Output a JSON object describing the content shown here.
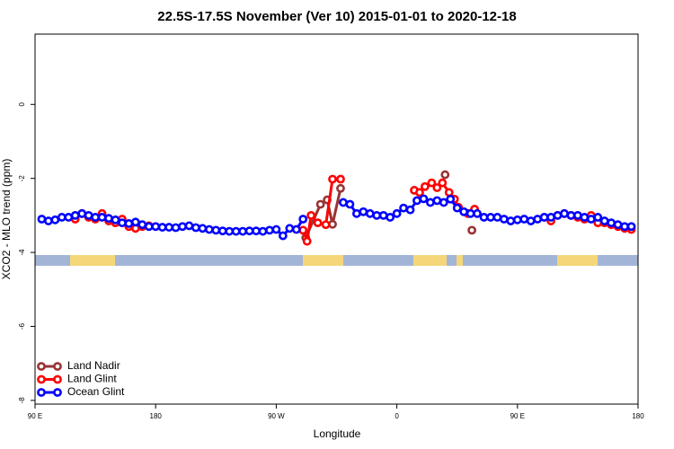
{
  "chart_data": {
    "type": "line",
    "title": "22.5S-17.5S November (Ver 10)   2015-01-01 to 2020-12-18",
    "xlabel": "Longitude",
    "ylabel": "XCO2 - MLO trend (ppm)",
    "xlim": [
      90,
      540
    ],
    "xticks": [
      {
        "value": 90,
        "label": "90 E"
      },
      {
        "value": 180,
        "label": "180"
      },
      {
        "value": 270,
        "label": "90 W"
      },
      {
        "value": 360,
        "label": "0"
      },
      {
        "value": 450,
        "label": "90 E"
      },
      {
        "value": 540,
        "label": "180"
      }
    ],
    "ylim": [
      -8.1,
      1.9
    ],
    "yticks": [
      0,
      -2,
      -4,
      -6,
      -8
    ],
    "legend": "lower left",
    "series": [
      {
        "name": "Land Nadir",
        "color": "#993333",
        "x": [
          292,
          303,
          308,
          312,
          318,
          355,
          396,
          406,
          416
        ],
        "values": [
          -3.6,
          -2.7,
          -2.58,
          -3.24,
          -2.27,
          null,
          -1.9,
          null,
          -3.4
        ]
      },
      {
        "name": "Land Glint",
        "color": "#ff0000",
        "x": [
          120,
          125,
          130,
          135,
          140,
          145,
          150,
          155,
          160,
          165,
          170,
          175,
          230,
          290,
          293,
          296,
          301,
          307,
          312,
          318,
          345,
          373,
          377,
          381,
          386,
          390,
          394,
          399,
          403,
          406,
          413,
          418,
          445,
          470,
          475,
          480,
          485,
          490,
          495,
          500,
          505,
          510,
          515,
          520,
          525,
          530,
          535
        ],
        "values": [
          -3.1,
          -2.95,
          -3.05,
          -3.1,
          -2.95,
          -3.15,
          -3.2,
          -3.1,
          -3.3,
          -3.35,
          -3.3,
          -3.28,
          null,
          -3.4,
          -3.7,
          -3.0,
          -3.2,
          -3.25,
          -2.02,
          -2.02,
          null,
          -2.32,
          -2.38,
          -2.22,
          -2.12,
          -2.25,
          -2.12,
          -2.38,
          -2.56,
          -2.78,
          -2.95,
          -2.83,
          null,
          -3.05,
          -3.15,
          -3.0,
          -2.95,
          -3.0,
          -3.05,
          -3.1,
          -3.0,
          -3.2,
          -3.2,
          -3.25,
          -3.3,
          -3.35,
          -3.38
        ]
      },
      {
        "name": "Ocean Glint",
        "color": "#0000ff",
        "x": [
          95,
          100,
          105,
          110,
          115,
          120,
          125,
          130,
          135,
          140,
          145,
          150,
          155,
          160,
          165,
          170,
          175,
          180,
          185,
          190,
          195,
          200,
          205,
          210,
          215,
          220,
          225,
          230,
          235,
          240,
          245,
          250,
          255,
          260,
          265,
          270,
          275,
          280,
          285,
          290,
          305,
          320,
          325,
          330,
          335,
          340,
          345,
          350,
          355,
          360,
          365,
          370,
          375,
          380,
          385,
          390,
          395,
          400,
          405,
          410,
          415,
          420,
          425,
          430,
          435,
          440,
          445,
          450,
          455,
          460,
          465,
          470,
          475,
          480,
          485,
          490,
          495,
          500,
          505,
          510,
          515,
          520,
          525,
          530,
          535
        ],
        "values": [
          -3.1,
          -3.15,
          -3.12,
          -3.05,
          -3.05,
          -3.0,
          -2.95,
          -3.0,
          -3.05,
          -3.05,
          -3.08,
          -3.12,
          -3.2,
          -3.22,
          -3.18,
          -3.25,
          -3.3,
          -3.3,
          -3.32,
          -3.32,
          -3.33,
          -3.3,
          -3.28,
          -3.33,
          -3.35,
          -3.38,
          -3.4,
          -3.42,
          -3.43,
          -3.43,
          -3.43,
          -3.42,
          -3.42,
          -3.43,
          -3.4,
          -3.38,
          -3.55,
          -3.35,
          -3.38,
          -3.1,
          null,
          -2.65,
          -2.7,
          -2.95,
          -2.9,
          -2.95,
          -3.0,
          -3.0,
          -3.05,
          -2.95,
          -2.8,
          -2.85,
          -2.6,
          -2.55,
          -2.65,
          -2.6,
          -2.65,
          -2.56,
          -2.8,
          -2.9,
          -2.95,
          -2.95,
          -3.05,
          -3.05,
          -3.05,
          -3.1,
          -3.15,
          -3.12,
          -3.1,
          -3.15,
          -3.1,
          -3.05,
          -3.05,
          -3.0,
          -2.95,
          -3.0,
          -3.0,
          -3.05,
          -3.1,
          -3.05,
          -3.15,
          -3.2,
          -3.25,
          -3.3,
          -3.3
        ]
      }
    ]
  }
}
